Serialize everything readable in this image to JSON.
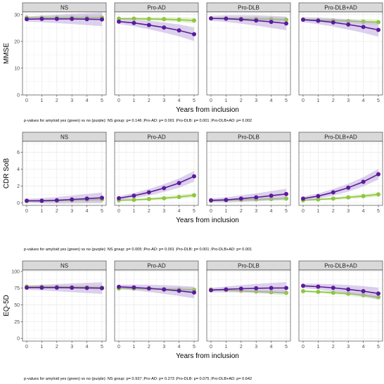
{
  "colors": {
    "amyloid_yes": "#8dc63f",
    "amyloid_no": "#5b1a9c",
    "amyloid_yes_ribbon": "#c6e39a",
    "amyloid_no_ribbon": "#b9a3d9",
    "panel_bg": "#ffffff",
    "strip_bg": "#d9d9d9",
    "grid": "#ebebeb",
    "border": "#333333"
  },
  "chart_data": [
    {
      "type": "line",
      "ylabel": "MMSE",
      "xlabel": "Years from inclusion",
      "ylim": [
        0,
        31
      ],
      "yticks": [
        0,
        10,
        20,
        30
      ],
      "x": [
        0,
        1,
        2,
        3,
        4,
        5
      ],
      "grid": true,
      "note": "p-values for amyloid yes (green) vs no (purple): NS group: p= 0.146  ;Pro-AD: p= 0.001  ;Pro-DLB: p= 0.001  ;Pro-DLB+AD: p= 0.002",
      "panels": [
        {
          "label": "NS",
          "series": [
            {
              "values": [
                28.9,
                28.9,
                28.9,
                28.9,
                28.9,
                28.9
              ],
              "color_key": "amyloid_yes"
            },
            {
              "values": [
                28.3,
                28.4,
                28.4,
                28.4,
                28.3,
                28.2
              ],
              "color_key": "amyloid_no"
            }
          ]
        },
        {
          "label": "Pro-AD",
          "series": [
            {
              "values": [
                28.5,
                28.5,
                28.4,
                28.3,
                28.1,
                27.8
              ],
              "color_key": "amyloid_yes"
            },
            {
              "values": [
                27.4,
                26.9,
                26.1,
                25.2,
                24.1,
                22.7
              ],
              "color_key": "amyloid_no"
            }
          ]
        },
        {
          "label": "Pro-DLB",
          "series": [
            {
              "values": [
                28.6,
                28.6,
                28.5,
                28.4,
                28.3,
                28.1
              ],
              "color_key": "amyloid_yes"
            },
            {
              "values": [
                28.6,
                28.5,
                28.2,
                27.8,
                27.3,
                26.7
              ],
              "color_key": "amyloid_no"
            }
          ]
        },
        {
          "label": "Pro-DLB+AD",
          "series": [
            {
              "values": [
                28.2,
                28.0,
                27.8,
                27.6,
                27.4,
                27.2
              ],
              "color_key": "amyloid_yes"
            },
            {
              "values": [
                28.1,
                27.7,
                27.1,
                26.3,
                25.4,
                24.3
              ],
              "color_key": "amyloid_no"
            }
          ]
        }
      ]
    },
    {
      "type": "line",
      "ylabel": "CDR SoB",
      "xlabel": "Years from inclusion",
      "ylim": [
        -0.3,
        7.3
      ],
      "yticks": [
        0,
        2,
        4,
        6
      ],
      "x": [
        0,
        1,
        2,
        3,
        4,
        5
      ],
      "grid": true,
      "note": "p-values for amyloid yes (green) vs no (purple): NS group: p= 0.005  ;Pro-AD: p= 0.001  ;Pro-DLB: p= 0.001  ;Pro-DLB+AD: p= 0.001",
      "panels": [
        {
          "label": "NS",
          "series": [
            {
              "values": [
                0.2,
                0.2,
                0.25,
                0.3,
                0.35,
                0.4
              ],
              "color_key": "amyloid_yes"
            },
            {
              "values": [
                0.25,
                0.25,
                0.3,
                0.4,
                0.5,
                0.6
              ],
              "color_key": "amyloid_no"
            }
          ]
        },
        {
          "label": "Pro-AD",
          "series": [
            {
              "values": [
                0.3,
                0.35,
                0.45,
                0.55,
                0.7,
                0.9
              ],
              "color_key": "amyloid_yes"
            },
            {
              "values": [
                0.55,
                0.85,
                1.25,
                1.75,
                2.35,
                3.15
              ],
              "color_key": "amyloid_no"
            }
          ]
        },
        {
          "label": "Pro-DLB",
          "series": [
            {
              "values": [
                0.25,
                0.3,
                0.35,
                0.4,
                0.45,
                0.5
              ],
              "color_key": "amyloid_yes"
            },
            {
              "values": [
                0.3,
                0.35,
                0.5,
                0.65,
                0.85,
                1.05
              ],
              "color_key": "amyloid_no"
            }
          ]
        },
        {
          "label": "Pro-DLB+AD",
          "series": [
            {
              "values": [
                0.3,
                0.4,
                0.5,
                0.65,
                0.8,
                1.0
              ],
              "color_key": "amyloid_yes"
            },
            {
              "values": [
                0.5,
                0.8,
                1.25,
                1.8,
                2.5,
                3.4
              ],
              "color_key": "amyloid_no"
            }
          ]
        }
      ]
    },
    {
      "type": "line",
      "ylabel": "EQ-5D",
      "xlabel": "Years from inclusion",
      "ylim": [
        -4,
        102
      ],
      "yticks": [
        0,
        25,
        50,
        75,
        100
      ],
      "x": [
        0,
        1,
        2,
        3,
        4,
        5
      ],
      "grid": true,
      "note": "p-values for amyloid yes (green) vs no (purple): NS group: p= 0.937  ;Pro-AD: p= 0.273  ;Pro-DLB: p= 0.075  ;Pro-DLB+AD: p= 0.642",
      "panels": [
        {
          "label": "NS",
          "series": [
            {
              "values": [
                77.5,
                77.3,
                77.0,
                76.6,
                76.2,
                75.7
              ],
              "color_key": "amyloid_yes"
            },
            {
              "values": [
                75.8,
                75.8,
                75.8,
                75.6,
                75.3,
                75.0
              ],
              "color_key": "amyloid_no"
            }
          ]
        },
        {
          "label": "Pro-AD",
          "series": [
            {
              "values": [
                74.5,
                74.3,
                74.0,
                73.6,
                73.2,
                72.5
              ],
              "color_key": "amyloid_yes"
            },
            {
              "values": [
                77.0,
                76.0,
                74.7,
                73.0,
                71.0,
                68.5
              ],
              "color_key": "amyloid_no"
            }
          ]
        },
        {
          "label": "Pro-DLB",
          "series": [
            {
              "values": [
                73.0,
                72.0,
                71.0,
                70.0,
                69.0,
                68.0
              ],
              "color_key": "amyloid_yes"
            },
            {
              "values": [
                72.0,
                73.2,
                74.2,
                74.8,
                75.2,
                75.3
              ],
              "color_key": "amyloid_no"
            }
          ]
        },
        {
          "label": "Pro-DLB+AD",
          "series": [
            {
              "values": [
                70.5,
                69.5,
                68.2,
                66.7,
                64.5,
                61.5
              ],
              "color_key": "amyloid_yes"
            },
            {
              "values": [
                78.5,
                77.2,
                75.5,
                73.2,
                70.5,
                67.0
              ],
              "color_key": "amyloid_no"
            }
          ]
        }
      ]
    }
  ]
}
